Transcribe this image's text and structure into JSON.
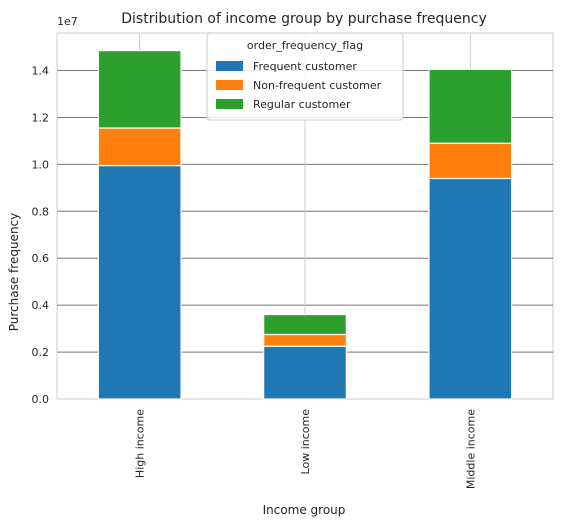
{
  "chart_data": {
    "type": "bar",
    "stacked": true,
    "title": "Distribution of income group by purchase frequency",
    "xlabel": "Income group",
    "ylabel": "Purchase frequency",
    "y_offset_label": "1e7",
    "ylim": [
      0,
      15600000
    ],
    "y_ticks": [
      0,
      2000000,
      4000000,
      6000000,
      8000000,
      10000000,
      12000000,
      14000000
    ],
    "y_tick_labels": [
      "0.0",
      "0.2",
      "0.4",
      "0.6",
      "0.8",
      "1.0",
      "1.2",
      "1.4"
    ],
    "grid": true,
    "legend_position": "top-center",
    "legend_title": "order_frequency_flag",
    "categories": [
      "High income",
      "Low income",
      "Middle income"
    ],
    "series": [
      {
        "name": "Frequent customer",
        "color": "#1f77b4",
        "values": [
          9950000,
          2250000,
          9400000
        ]
      },
      {
        "name": "Non-frequent customer",
        "color": "#ff7f0e",
        "values": [
          1600000,
          500000,
          1500000
        ]
      },
      {
        "name": "Regular customer",
        "color": "#2ca02c",
        "values": [
          3300000,
          850000,
          3150000
        ]
      }
    ]
  }
}
